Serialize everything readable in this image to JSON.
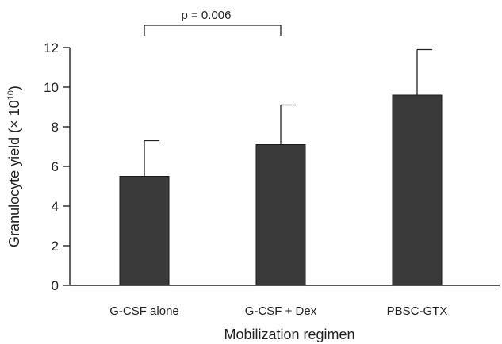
{
  "chart_data": {
    "type": "bar",
    "title": "",
    "xlabel": "Mobilization regimen",
    "ylabel_main": "Granulocyte yield (",
    "ylabel_times": "× 10",
    "ylabel_exp": "10",
    "ylabel_close": ")",
    "ylim": [
      0,
      12
    ],
    "yticks": [
      0,
      2,
      4,
      6,
      8,
      10,
      12
    ],
    "grid": false,
    "legend": "none",
    "bar_color": "#3a3a3a",
    "categories": [
      "G-CSF alone",
      "G-CSF + Dex",
      "PBSC-GTX"
    ],
    "values": [
      5.5,
      7.1,
      9.6
    ],
    "error_upper": [
      7.3,
      9.1,
      11.9
    ],
    "annotations": [
      {
        "text": "p = 0.006",
        "from_category": 0,
        "to_category": 1
      }
    ]
  }
}
